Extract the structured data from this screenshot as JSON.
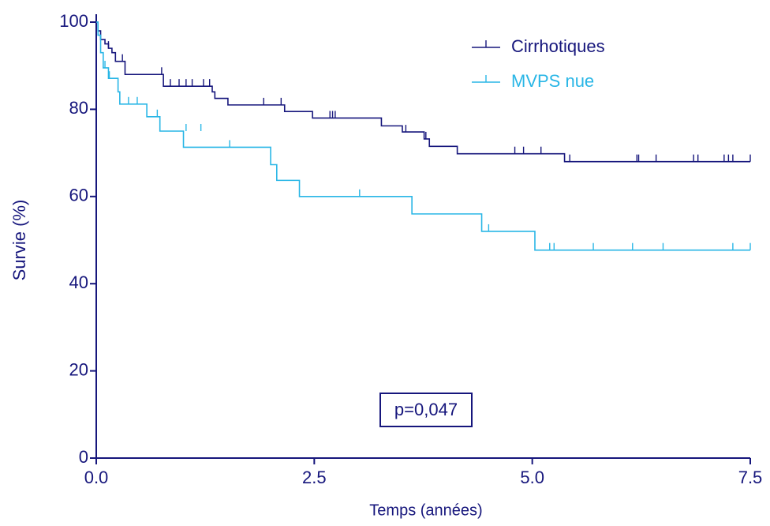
{
  "chart_data": {
    "type": "step",
    "x_label": "Temps (années)",
    "y_label": "Survie (%)",
    "annotation": "p=0,047",
    "xlim": [
      0,
      7.5
    ],
    "ylim": [
      0,
      100
    ],
    "xticks": [
      {
        "value": 0,
        "label": "0.0"
      },
      {
        "value": 2.5,
        "label": "2.5"
      },
      {
        "value": 5,
        "label": "5.0"
      },
      {
        "value": 7.5,
        "label": "7.5"
      }
    ],
    "yticks": [
      0,
      20,
      40,
      60,
      80,
      100
    ],
    "legend": "top-right",
    "series": [
      {
        "name": "Cirrhotiques",
        "color": "#16167c",
        "x": [
          0,
          0.02,
          0.05,
          0.1,
          0.14,
          0.18,
          0.22,
          0.33,
          0.77,
          1.33,
          1.36,
          1.51,
          2.16,
          2.48,
          3.27,
          3.51,
          3.76,
          3.82,
          4.14,
          5.37,
          7.5
        ],
        "values": [
          100,
          98,
          96,
          95,
          94,
          93,
          91,
          88,
          85.3,
          84,
          82.5,
          81,
          79.5,
          78,
          76.2,
          74.8,
          73.2,
          71.5,
          69.8,
          68,
          68
        ],
        "censored_x": [
          0.14,
          0.3,
          0.75,
          0.85,
          0.95,
          1.03,
          1.1,
          1.23,
          1.3,
          1.92,
          2.12,
          2.68,
          2.71,
          2.74,
          3.55,
          3.78,
          4.8,
          4.9,
          5.1,
          5.43,
          6.2,
          6.22,
          6.42,
          6.85,
          6.9,
          7.2,
          7.25,
          7.3,
          7.5
        ],
        "censored_values": [
          94,
          91,
          88,
          85.3,
          85.3,
          85.3,
          85.3,
          85.3,
          85.3,
          81,
          81,
          78,
          78,
          78,
          74.8,
          73.2,
          69.8,
          69.8,
          69.8,
          68,
          68,
          68,
          68,
          68,
          68,
          68,
          68,
          68,
          68
        ]
      },
      {
        "name": "MVPS nue",
        "color": "#29b6e6",
        "x": [
          0,
          0.02,
          0.05,
          0.08,
          0.14,
          0.25,
          0.27,
          0.58,
          0.73,
          1.0,
          2.0,
          2.07,
          2.33,
          3.62,
          4.42,
          5.03,
          7.5
        ],
        "values": [
          100,
          97,
          93,
          89.5,
          87.1,
          84,
          81.2,
          78.3,
          75,
          71.3,
          67.3,
          63.7,
          60,
          56,
          52,
          47.7,
          47.7
        ],
        "censored_x": [
          0.1,
          0.15,
          0.37,
          0.47,
          0.7,
          1.03,
          1.2,
          1.53,
          3.02,
          4.5,
          5.2,
          5.25,
          5.7,
          6.15,
          6.5,
          7.3,
          7.5
        ],
        "censored_values": [
          89.5,
          87.1,
          81.2,
          81.2,
          78.3,
          75,
          75,
          71.3,
          60,
          52,
          47.7,
          47.7,
          47.7,
          47.7,
          47.7,
          47.7,
          47.7
        ]
      }
    ]
  }
}
